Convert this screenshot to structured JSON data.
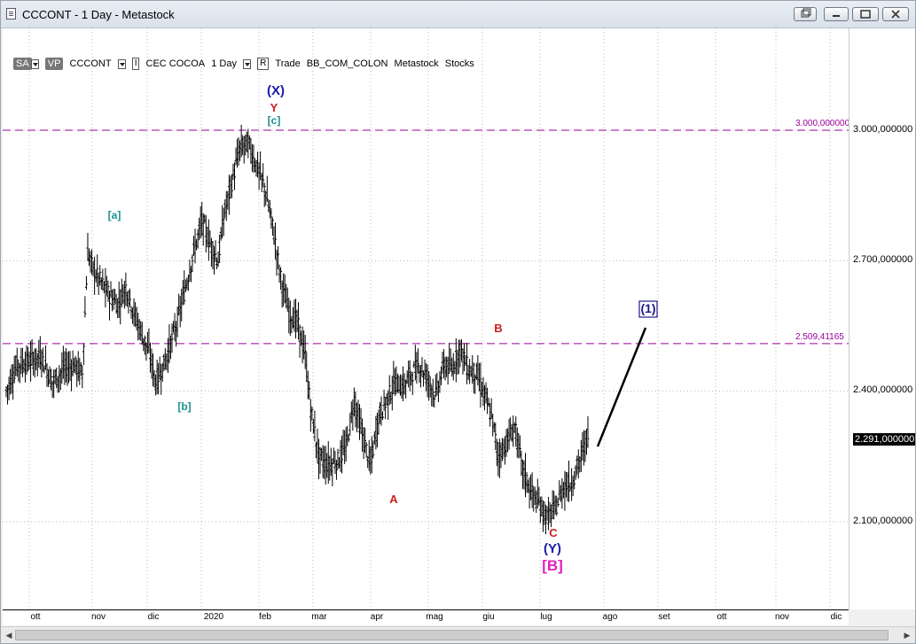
{
  "window": {
    "title": "CCCONT - 1 Day - Metastock",
    "controls": {
      "menu_icon": "restore-menu-icon",
      "minimize": "minimize-icon",
      "maximize": "maximize-icon",
      "close": "close-icon"
    }
  },
  "toolbar": {
    "sa_badge": "SA",
    "vp_badge": "VP",
    "symbol": "CCCONT",
    "indicator_marker": "I",
    "instrument": "CEC COCOA",
    "period": "1 Day",
    "r_marker": "R",
    "trade": "Trade",
    "source": "BB_COM_COLON",
    "vendor": "Metastock",
    "type": "Stocks"
  },
  "price_axis": {
    "ticks": [
      "3.000,000000",
      "2.700,000000",
      "2.400,000000",
      "2.100,000000"
    ],
    "last_price": "2.291,000000"
  },
  "time_axis": {
    "ticks": [
      "ott",
      "nov",
      "dic",
      "2020",
      "feb",
      "mar",
      "apr",
      "mag",
      "giu",
      "lug",
      "ago",
      "set",
      "ott",
      "nov",
      "dic"
    ]
  },
  "horizontal_lines": [
    {
      "label": "3.000,000000",
      "value": 3000,
      "color": "#990099"
    },
    {
      "label": "2.509,41165",
      "value": 2509.41165,
      "color": "#990099"
    }
  ],
  "wave_labels": {
    "x_label": "(X)",
    "y_label": "Y",
    "c_label": "[c]",
    "a_label": "[a]",
    "b_label": "[b]",
    "wave_a": "A",
    "wave_b": "B",
    "wave_c": "C",
    "y_paren": "(Y)",
    "b_bracket": "[B]",
    "one_label": "(1)"
  },
  "chart_data": {
    "type": "ohlc",
    "title": "CCCONT - 1 Day - Metastock",
    "xlabel": "",
    "ylabel": "",
    "ylim": [
      1900,
      3300
    ],
    "x_ticks": [
      "ott",
      "nov",
      "dic",
      "2020",
      "feb",
      "mar",
      "apr",
      "mag",
      "giu",
      "lug",
      "ago",
      "set",
      "ott",
      "nov",
      "dic"
    ],
    "approx_closes": [
      {
        "date": "ott",
        "close": 2450
      },
      {
        "date": "nov (early)",
        "close": 2730
      },
      {
        "date": "nov (mid)",
        "close": 2620
      },
      {
        "date": "dic (late)",
        "close": 2400
      },
      {
        "date": "2020",
        "close": 2620
      },
      {
        "date": "gen (late)",
        "close": 2800
      },
      {
        "date": "feb (early)",
        "close": 2990
      },
      {
        "date": "mar (early)",
        "close": 2700
      },
      {
        "date": "mar (mid)",
        "close": 2400
      },
      {
        "date": "mar (late)",
        "close": 2240
      },
      {
        "date": "apr (mid)",
        "close": 2250
      },
      {
        "date": "mag",
        "close": 2420
      },
      {
        "date": "giu (early)",
        "close": 2500
      },
      {
        "date": "giu (late)",
        "close": 2250
      },
      {
        "date": "lug (mid)",
        "close": 2100
      },
      {
        "date": "lug (late)",
        "close": 2291
      }
    ],
    "last_value": 2291,
    "projection": {
      "from": 2290,
      "to": 2560,
      "label": "(1)"
    },
    "grid": true,
    "grid_style": "dotted"
  }
}
